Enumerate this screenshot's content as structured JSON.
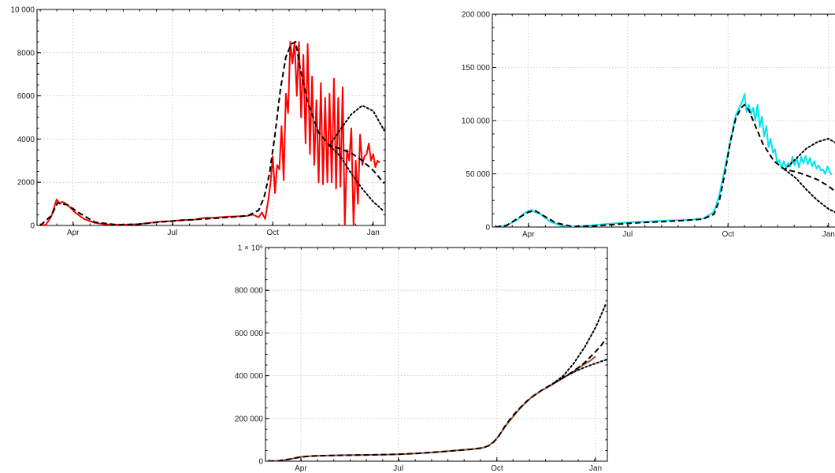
{
  "chart_data": [
    {
      "type": "line",
      "title": "",
      "xlabel": "",
      "ylabel": "",
      "xlim": [
        -3,
        316
      ],
      "ylim": [
        0,
        10000
      ],
      "grid": true,
      "x_ticks": [
        {
          "label": "Apr",
          "value": 30
        },
        {
          "label": "Jul",
          "value": 121
        },
        {
          "label": "Oct",
          "value": 213
        },
        {
          "label": "Jan",
          "value": 305
        }
      ],
      "y_ticks": [
        {
          "label": "0",
          "value": 0
        },
        {
          "label": "2000",
          "value": 2000
        },
        {
          "label": "4000",
          "value": 4000
        },
        {
          "label": "6000",
          "value": 6000
        },
        {
          "label": "8000",
          "value": 8000
        },
        {
          "label": "10 000",
          "value": 10000
        }
      ],
      "series": [
        {
          "style": "solid",
          "color": "#ff0000",
          "x": [
            0,
            5,
            10,
            15,
            18,
            20,
            22,
            25,
            28,
            32,
            36,
            40,
            50,
            60,
            70,
            80,
            90,
            100,
            110,
            120,
            130,
            140,
            150,
            160,
            170,
            180,
            190,
            195,
            200,
            203,
            206,
            209,
            211,
            213,
            215,
            217,
            219,
            221,
            223,
            225,
            227,
            229,
            231,
            233,
            235,
            237,
            239,
            241,
            243,
            245,
            247,
            249,
            251,
            253,
            255,
            257,
            259,
            261,
            263,
            265,
            267,
            269,
            271,
            273,
            275,
            277,
            279,
            281,
            283,
            285,
            287,
            289,
            291,
            293,
            295,
            297,
            299,
            301,
            303,
            305,
            307,
            309,
            311
          ],
          "y": [
            0,
            30,
            400,
            1200,
            1000,
            1100,
            1050,
            950,
            800,
            600,
            450,
            300,
            120,
            50,
            40,
            40,
            60,
            120,
            180,
            200,
            250,
            260,
            350,
            360,
            400,
            420,
            450,
            500,
            380,
            600,
            300,
            1200,
            2000,
            3200,
            1500,
            2800,
            2600,
            4600,
            2100,
            6100,
            5200,
            8500,
            7500,
            8500,
            6000,
            8500,
            5000,
            7900,
            3800,
            8400,
            3300,
            6900,
            2800,
            5800,
            2000,
            6600,
            1900,
            5900,
            2000,
            6100,
            2000,
            6800,
            1700,
            5900,
            1800,
            6400,
            0,
            3500,
            3000,
            4500,
            0,
            3000,
            1000,
            4200,
            2800,
            3200,
            3300,
            3800,
            3000,
            3300,
            2700,
            3000,
            2900
          ]
        },
        {
          "style": "dashed",
          "color": "#000000",
          "x": [
            0,
            10,
            16,
            25,
            35,
            50,
            70,
            90,
            110,
            130,
            150,
            170,
            190,
            200,
            205,
            210,
            215,
            220,
            225,
            230,
            234,
            238,
            245,
            255,
            265,
            275,
            285,
            295,
            305,
            315
          ],
          "y": [
            0,
            450,
            1050,
            950,
            600,
            150,
            30,
            60,
            160,
            240,
            300,
            370,
            450,
            700,
            1300,
            2400,
            4200,
            6300,
            7800,
            8400,
            8500,
            7300,
            5700,
            4300,
            3700,
            3550,
            3350,
            3000,
            2550,
            1950
          ]
        },
        {
          "style": "dotted",
          "color": "#000000",
          "x": [
            265,
            275,
            285,
            295,
            305,
            315
          ],
          "y": [
            3700,
            4450,
            5150,
            5550,
            5300,
            4400
          ]
        },
        {
          "style": "dotted",
          "color": "#000000",
          "x": [
            265,
            275,
            285,
            295,
            305,
            315
          ],
          "y": [
            3700,
            3200,
            2400,
            1700,
            1100,
            650
          ]
        }
      ]
    },
    {
      "type": "line",
      "title": "",
      "xlabel": "",
      "ylabel": "",
      "xlim": [
        -3,
        316
      ],
      "ylim": [
        0,
        200000
      ],
      "grid": true,
      "x_ticks": [
        {
          "label": "Apr",
          "value": 30
        },
        {
          "label": "Jul",
          "value": 121
        },
        {
          "label": "Oct",
          "value": 213
        },
        {
          "label": "Jan",
          "value": 305
        }
      ],
      "y_ticks": [
        {
          "label": "0",
          "value": 0
        },
        {
          "label": "50 000",
          "value": 50000
        },
        {
          "label": "100 000",
          "value": 100000
        },
        {
          "label": "150 000",
          "value": 150000
        },
        {
          "label": "200 000",
          "value": 200000
        }
      ],
      "series": [
        {
          "style": "solid",
          "color": "#00e5ee",
          "x": [
            0,
            10,
            20,
            25,
            30,
            33,
            36,
            40,
            45,
            50,
            60,
            70,
            80,
            90,
            100,
            110,
            120,
            130,
            140,
            150,
            160,
            170,
            180,
            190,
            200,
            205,
            210,
            215,
            220,
            223,
            226,
            228,
            230,
            232,
            234,
            236,
            238,
            240,
            242,
            244,
            246,
            248,
            250,
            252,
            254,
            256,
            258,
            260,
            262,
            264,
            266,
            268,
            270,
            272,
            274,
            276,
            278,
            280,
            282,
            284,
            286,
            288,
            290,
            292,
            294,
            296,
            298,
            300,
            302,
            304,
            306,
            308
          ],
          "y": [
            0,
            1500,
            7000,
            12000,
            15000,
            16000,
            14000,
            13000,
            9000,
            5000,
            1500,
            400,
            1000,
            1800,
            2800,
            3500,
            4200,
            4800,
            5200,
            5800,
            6200,
            6500,
            7000,
            8000,
            14000,
            30000,
            55000,
            80000,
            105000,
            112000,
            118000,
            125000,
            108000,
            115000,
            106000,
            112000,
            100000,
            115000,
            94000,
            104000,
            85000,
            95000,
            75000,
            83000,
            70000,
            73000,
            60000,
            63000,
            55000,
            62000,
            56000,
            60000,
            57000,
            66000,
            58000,
            64000,
            56000,
            66000,
            60000,
            67000,
            59000,
            65000,
            57000,
            62000,
            55000,
            58000,
            53000,
            54000,
            50000,
            57000,
            52000,
            49000
          ]
        },
        {
          "style": "dashed",
          "color": "#000000",
          "x": [
            0,
            10,
            20,
            30,
            36,
            45,
            55,
            70,
            90,
            110,
            130,
            150,
            170,
            190,
            200,
            205,
            210,
            215,
            220,
            225,
            228,
            232,
            238,
            245,
            255,
            265,
            275,
            285,
            295,
            305,
            315
          ],
          "y": [
            0,
            1500,
            8000,
            14000,
            15500,
            10000,
            4000,
            500,
            1000,
            2500,
            4000,
            5000,
            6000,
            7500,
            12000,
            25000,
            50000,
            80000,
            102000,
            112000,
            115000,
            110000,
            95000,
            78000,
            62000,
            54000,
            52000,
            48500,
            44500,
            38500,
            30000
          ]
        },
        {
          "style": "dotted",
          "color": "#000000",
          "x": [
            265,
            275,
            285,
            295,
            305,
            315
          ],
          "y": [
            54000,
            64000,
            74000,
            80000,
            83000,
            77000
          ]
        },
        {
          "style": "dotted",
          "color": "#000000",
          "x": [
            265,
            275,
            285,
            295,
            305,
            315
          ],
          "y": [
            54000,
            46000,
            35000,
            25000,
            17000,
            12000
          ]
        }
      ]
    },
    {
      "type": "line",
      "title": "",
      "xlabel": "",
      "ylabel": "",
      "xlim": [
        -3,
        316
      ],
      "ylim": [
        0,
        1000000
      ],
      "grid": true,
      "x_ticks": [
        {
          "label": "Apr",
          "value": 30
        },
        {
          "label": "Jul",
          "value": 121
        },
        {
          "label": "Oct",
          "value": 213
        },
        {
          "label": "Jan",
          "value": 305
        }
      ],
      "y_ticks": [
        {
          "label": "0",
          "value": 0
        },
        {
          "label": "200 000",
          "value": 200000
        },
        {
          "label": "400 000",
          "value": 400000
        },
        {
          "label": "600 000",
          "value": 600000
        },
        {
          "label": "800 000",
          "value": 800000
        },
        {
          "label": "1 × 10⁶",
          "value": 1000000
        }
      ],
      "series": [
        {
          "style": "solid",
          "color": "#a0522d",
          "x": [
            0,
            10,
            20,
            30,
            40,
            50,
            60,
            70,
            80,
            90,
            100,
            110,
            120,
            130,
            140,
            150,
            160,
            170,
            180,
            190,
            200,
            205,
            210,
            215,
            220,
            225,
            230,
            235,
            240,
            245,
            250,
            255,
            260,
            265,
            270,
            275,
            280,
            285,
            290,
            295,
            300,
            305
          ],
          "y": [
            0,
            2000,
            10000,
            20000,
            24000,
            26000,
            27000,
            28000,
            28500,
            29000,
            30000,
            31000,
            32000,
            34000,
            37000,
            40000,
            44000,
            48000,
            52000,
            56000,
            63000,
            72000,
            90000,
            120000,
            158000,
            190000,
            220000,
            250000,
            275000,
            298000,
            315000,
            332000,
            345000,
            360000,
            375000,
            390000,
            405000,
            420000,
            440000,
            455000,
            470000,
            490000
          ]
        },
        {
          "style": "dashed",
          "color": "#000000",
          "x": [
            0,
            10,
            20,
            30,
            40,
            60,
            80,
            100,
            120,
            140,
            160,
            180,
            190,
            200,
            205,
            210,
            215,
            220,
            225,
            230,
            235,
            240,
            245,
            250,
            255,
            260,
            265,
            270,
            275,
            280,
            285,
            290,
            295,
            300,
            305,
            310,
            315
          ],
          "y": [
            0,
            2000,
            10000,
            20000,
            24000,
            27000,
            28500,
            30000,
            32000,
            37000,
            44000,
            52000,
            56000,
            62000,
            72000,
            90000,
            120000,
            160000,
            195000,
            225000,
            252000,
            277000,
            298000,
            316000,
            333000,
            348000,
            362000,
            377000,
            392000,
            407000,
            423000,
            442000,
            462000,
            487000,
            512000,
            540000,
            575000
          ]
        },
        {
          "style": "dotted",
          "color": "#000000",
          "x": [
            265,
            275,
            285,
            295,
            305,
            315
          ],
          "y": [
            362000,
            400000,
            460000,
            535000,
            625000,
            740000
          ]
        },
        {
          "style": "dotted",
          "color": "#000000",
          "x": [
            265,
            275,
            285,
            295,
            305,
            315
          ],
          "y": [
            362000,
            392000,
            418000,
            440000,
            458000,
            475000
          ]
        }
      ]
    }
  ]
}
